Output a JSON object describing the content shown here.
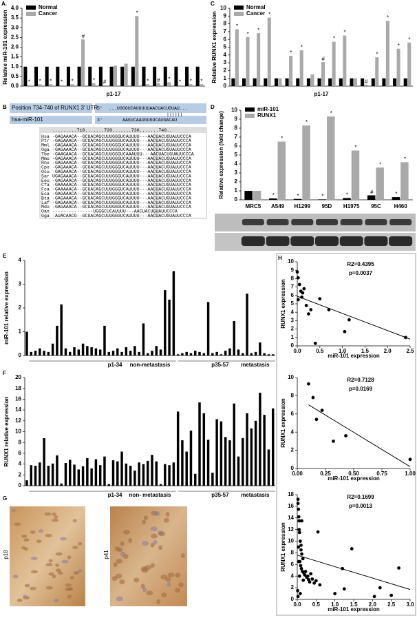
{
  "chart_data": [
    {
      "type": "bar",
      "panel": "A.",
      "ylabel": "Relative miR-101 expression",
      "xlabel": "p1-17",
      "categories": [
        null,
        null,
        null,
        null,
        null,
        null,
        null,
        null,
        null,
        null,
        null,
        null,
        null,
        null,
        null,
        null,
        null
      ],
      "series": [
        {
          "name": "Normal",
          "color": "#000000",
          "values": [
            1,
            1,
            1,
            1,
            1,
            1,
            1,
            1,
            1,
            1,
            1,
            1,
            1,
            1,
            1,
            1,
            1
          ]
        },
        {
          "name": "Cancer",
          "color": "#a9a9a9",
          "values": [
            0.05,
            0.1,
            0.1,
            0.05,
            0.1,
            2.4,
            0.15,
            0.05,
            1.05,
            1.15,
            3.6,
            0.1,
            0.15,
            0.2,
            0.05,
            0.1,
            0.1
          ],
          "annotations": [
            "*",
            "*",
            "*",
            "*",
            "*",
            "#",
            "*",
            "#",
            null,
            null,
            "*",
            "*",
            "#",
            "*",
            "*",
            "*",
            "*"
          ]
        }
      ],
      "ylim": [
        0,
        4
      ],
      "yticks": [
        {
          "value": 0,
          "label": "0.0"
        },
        0.5,
        {
          "value": 1,
          "label": "1.0"
        },
        1.5,
        {
          "value": 2,
          "label": "2.0"
        },
        2.5,
        {
          "value": 3,
          "label": "3.0"
        },
        3.5,
        {
          "value": 4,
          "label": "4.0"
        }
      ],
      "legend": "upper-left"
    },
    {
      "type": "bar",
      "panel": "C",
      "ylabel": "Relative RUNX1 expression",
      "xlabel": "p1-17",
      "categories": [
        null,
        null,
        null,
        null,
        null,
        null,
        null,
        null,
        null,
        null,
        null,
        null,
        null,
        null,
        null,
        null,
        null
      ],
      "series": [
        {
          "name": "Normal",
          "color": "#000000",
          "values": [
            1,
            1,
            1,
            1,
            1,
            1,
            1,
            1,
            1,
            1,
            1,
            1,
            1,
            1,
            1,
            1,
            1
          ]
        },
        {
          "name": "Cancer",
          "color": "#a9a9a9",
          "values": [
            7.3,
            6.3,
            6.8,
            8.8,
            1.0,
            3.9,
            4.6,
            1.5,
            3.1,
            5.7,
            6.5,
            1.0,
            0.2,
            3.7,
            8.4,
            4.8,
            5.6
          ],
          "annotations": [
            "*",
            "*",
            "*",
            "*",
            null,
            "*",
            "*",
            null,
            "#",
            "*",
            "*",
            null,
            "#",
            "*",
            "*",
            "*",
            "*"
          ]
        }
      ],
      "ylim": [
        0,
        10
      ],
      "yticks": [
        0,
        1,
        2,
        3,
        4,
        5,
        6,
        7,
        8,
        9,
        10
      ],
      "legend": "upper-left"
    },
    {
      "type": "bar",
      "panel": "D",
      "ylabel": "Relative expression (fold change)",
      "categories": [
        "MRC5",
        "A549",
        "H1299",
        "95D",
        "H1975",
        "95C",
        "H460"
      ],
      "series": [
        {
          "name": "miR-101",
          "color": "#000000",
          "values": [
            1.0,
            0.15,
            0.1,
            0.05,
            0.2,
            0.5,
            0.3
          ],
          "annotations": [
            null,
            "*",
            "*",
            "*",
            "*",
            "#",
            "*"
          ]
        },
        {
          "name": "RUNX1",
          "color": "#a9a9a9",
          "values": [
            1.0,
            6.5,
            8.3,
            9.3,
            5.5,
            3.6,
            4.2
          ],
          "annotations": [
            null,
            "*",
            "*",
            "*",
            "*",
            "*",
            "*"
          ]
        }
      ],
      "ylim": [
        0,
        10
      ],
      "yticks": [
        0,
        1,
        2,
        3,
        4,
        5,
        6,
        7,
        8,
        9,
        10
      ],
      "legend": "upper-left"
    },
    {
      "type": "bar",
      "panel": "E",
      "ylabel": "miR-101 relative expression",
      "color": "#000000",
      "group_labels": [
        "p1-34",
        "non-metastasis",
        "p35-57",
        "metastasis"
      ],
      "categories": [
        null,
        null,
        null,
        null,
        null,
        null,
        null,
        null,
        null,
        null,
        null,
        null,
        null,
        null,
        null,
        null,
        null,
        null,
        null,
        null,
        null,
        null,
        null,
        null,
        null,
        null,
        null,
        null,
        null,
        null,
        null,
        null,
        null,
        null,
        null,
        null,
        null,
        null,
        null,
        null,
        null,
        null,
        null,
        null,
        null,
        null,
        null,
        null,
        null,
        null,
        null,
        null,
        null,
        null,
        null,
        null,
        null,
        null
      ],
      "values": [
        1.0,
        0.15,
        0.2,
        0.3,
        0.2,
        0.15,
        0.5,
        1.25,
        2.15,
        0.3,
        0.15,
        0.35,
        0.25,
        0.5,
        0.4,
        0.35,
        0.3,
        0.25,
        1.25,
        0.15,
        0.2,
        0.3,
        0.15,
        0.35,
        0.2,
        0.4,
        0.15,
        1.35,
        0.1,
        0.2,
        0.4,
        0.25,
        2.75,
        2.35,
        3.55,
        0.05,
        0.1,
        0.15,
        0.1,
        0.2,
        0.15,
        0.1,
        2.25,
        0.1,
        0.15,
        0.05,
        0.2,
        0.3,
        1.45,
        0.25,
        0.1,
        2.6,
        0.1,
        0.15,
        0.55,
        0.1,
        0.05,
        0.05
      ],
      "ylim": [
        0,
        4
      ],
      "yticks": [
        0,
        1,
        2,
        3,
        4
      ]
    },
    {
      "type": "bar",
      "panel": "F",
      "ylabel": "RUNX1 relative expression",
      "color": "#000000",
      "group_labels": [
        "p1-34",
        "non- metastasis",
        "p35-57",
        "metastasis"
      ],
      "categories": [
        null,
        null,
        null,
        null,
        null,
        null,
        null,
        null,
        null,
        null,
        null,
        null,
        null,
        null,
        null,
        null,
        null,
        null,
        null,
        null,
        null,
        null,
        null,
        null,
        null,
        null,
        null,
        null,
        null,
        null,
        null,
        null,
        null,
        null,
        null,
        null,
        null,
        null,
        null,
        null,
        null,
        null,
        null,
        null,
        null,
        null,
        null,
        null,
        null,
        null,
        null,
        null,
        null,
        null,
        null,
        null,
        null,
        null
      ],
      "values": [
        1.0,
        3.8,
        3.7,
        4.3,
        8.8,
        3.7,
        4.1,
        5.6,
        0.4,
        4.2,
        4.8,
        3.9,
        3.0,
        3.6,
        5.1,
        3.2,
        4.9,
        3.8,
        5.4,
        0.3,
        4.7,
        4.5,
        6.3,
        4.1,
        3.7,
        2.8,
        4.3,
        4.0,
        4.6,
        5.7,
        4.5,
        0.3,
        4.0,
        3.8,
        4.3,
        13.7,
        8.4,
        6.3,
        10.2,
        2.2,
        15.4,
        13.4,
        8.5,
        2.4,
        12.3,
        11.9,
        9.0,
        8.4,
        15.2,
        5.4,
        8.8,
        13.4,
        10.6,
        12.0,
        17.2,
        13.1,
        6.7,
        14.3
      ],
      "ylim": [
        0,
        20
      ],
      "yticks": [
        0,
        2,
        4,
        6,
        8,
        10,
        12,
        14,
        16,
        18,
        20
      ]
    },
    {
      "type": "scatter",
      "panel": "H",
      "xlabel": "miR-101 expression",
      "ylabel": "RUNX1 expression",
      "annotations": [
        "R2=0.4395",
        "p=0.0037"
      ],
      "x": [
        0.0,
        0.02,
        0.05,
        0.08,
        0.1,
        0.12,
        0.15,
        0.2,
        0.25,
        0.3,
        0.4,
        0.5,
        0.7,
        1.05,
        1.15,
        2.4,
        0.02
      ],
      "y": [
        8.8,
        8.1,
        7.3,
        6.5,
        5.8,
        6.3,
        6.8,
        4.8,
        3.8,
        4.3,
        0.3,
        5.6,
        4.3,
        1.7,
        3.1,
        1.0,
        5.5
      ],
      "trendline": {
        "x": [
          0,
          2.5
        ],
        "y": [
          5.9,
          0.8
        ]
      },
      "xlim": [
        0,
        2.5
      ],
      "xticks": [
        {
          "value": 0,
          "label": "0.0"
        },
        0.5,
        {
          "value": 1,
          "label": "1.0"
        },
        1.5,
        {
          "value": 2,
          "label": "2.0"
        },
        2.5
      ],
      "ylim": [
        0,
        10
      ],
      "yticks": [
        0,
        1,
        2,
        3,
        4,
        5,
        6,
        7,
        8,
        9,
        10
      ]
    },
    {
      "type": "scatter",
      "xlabel": "miR-101 expression",
      "ylabel": "RUNX1 expression",
      "annotations": [
        "R2=0.7128",
        "p=0.0169"
      ],
      "x": [
        0.1,
        0.14,
        0.17,
        0.22,
        0.32,
        0.43,
        1.0
      ],
      "y": [
        9.3,
        7.8,
        5.4,
        6.4,
        3.0,
        3.6,
        1.0
      ],
      "trendline": {
        "x": [
          0.1,
          1.0
        ],
        "y": [
          7.0,
          0.2
        ]
      },
      "xlim": [
        0,
        1
      ],
      "xticks": [
        {
          "value": 0,
          "label": "0.00"
        },
        0.25,
        {
          "value": 0.5,
          "label": "0.50"
        },
        0.75,
        {
          "value": 1,
          "label": "1.00"
        }
      ],
      "ylim": [
        0,
        10
      ],
      "yticks": [
        0,
        2,
        4,
        6,
        8,
        10
      ]
    },
    {
      "type": "scatter",
      "xlabel": "miR-101 expression",
      "ylabel": "RUNX1 expression",
      "annotations": [
        "R2=0.1699",
        "p=0.0013"
      ],
      "x": [
        0.02,
        0.03,
        0.05,
        0.05,
        0.06,
        0.08,
        0.1,
        0.1,
        0.12,
        0.15,
        0.02,
        0.04,
        0.07,
        0.09,
        0.11,
        0.14,
        0.18,
        0.2,
        0.22,
        0.25,
        0.28,
        0.3,
        0.33,
        0.36,
        0.4,
        0.45,
        0.5,
        0.55,
        0.6,
        0.12,
        0.08,
        0.03,
        0.04,
        0.06,
        0.16,
        1.0,
        1.2,
        1.25,
        1.45,
        2.05,
        2.2,
        2.5,
        2.7,
        0.01,
        0.02
      ],
      "y": [
        16.5,
        15.5,
        13.5,
        12.0,
        11.5,
        10.0,
        9.3,
        8.5,
        7.8,
        7.0,
        17.2,
        14.2,
        6.5,
        5.8,
        5.3,
        4.8,
        4.5,
        4.2,
        4.8,
        3.8,
        4.0,
        3.4,
        3.0,
        4.4,
        3.5,
        2.8,
        3.2,
        11.6,
        2.5,
        13.5,
        1.0,
        9.0,
        6.5,
        4.0,
        3.3,
        1.0,
        5.3,
        1.8,
        8.7,
        0.5,
        2.0,
        0.7,
        5.4,
        1.5,
        0.5
      ],
      "trendline": {
        "x": [
          0,
          3
        ],
        "y": [
          7.6,
          1.7
        ]
      },
      "xlim": [
        0,
        3
      ],
      "xticks": [
        {
          "value": 0,
          "label": "0.0"
        },
        0.5,
        {
          "value": 1,
          "label": "1.0"
        },
        1.5,
        {
          "value": 2,
          "label": "2.0"
        },
        2.5,
        {
          "value": 3,
          "label": "3.0"
        }
      ],
      "ylim": [
        0,
        18
      ],
      "yticks": [
        0,
        2,
        4,
        6,
        8,
        10,
        12,
        14,
        16,
        18
      ]
    }
  ],
  "alignment": {
    "panel": "B",
    "target_label": "Position 734-740 of RUNX1 3' UTR",
    "target_end": "5'",
    "target_seq": "...UGGGUCAUUUUUAACUACUGUAU...",
    "mirna_label": "hsa-miR-101",
    "mirna_end": "3'",
    "mirna_seq": "AAGUCAAUGUGUCAUGACAU",
    "pairing": "||||||",
    "ruler": ".........710.......720.......730.......740..",
    "rows": [
      {
        "species": "Hsa",
        "seq": "-GAGAAACA--GCUACAGCUUUGGGUCAUUUU---AACUACUGUAUUCCCA",
        "color": "#1f1f1f"
      },
      {
        "species": "Ptr",
        "seq": "-GAGAAACA--GCUACAGCUUUGGGUCAUUUU---AACUACUGUAUUCCCA",
        "color": "#1c3f94"
      },
      {
        "species": "Mml",
        "seq": "-GAGAAACA--GCUACAGCUUUGGGUCAUUUU---AACUACUGUAUUCCCA",
        "color": "#1c3f94"
      },
      {
        "species": "Oga",
        "seq": "-GAGAAACA--GCUACAGCUUUGGGUCAUUUU---AACUACUGUAUUCCCA",
        "color": "#1c3f94"
      },
      {
        "species": "Tbe",
        "seq": "-GAAGAACA--GCUACAGCUUUGGGUCAAAUUU---AACUACUGUAUUCCCA",
        "color": "#8b1c5c"
      },
      {
        "species": "Mmu",
        "seq": "-GAGAAACA--GCUACAGCUUUGGGUCAUUUU---AACUACUGUAUUCCCA",
        "color": "#1c3f94"
      },
      {
        "species": "Rno",
        "seq": "-GAGAAACA--GCUACAGCUUUGGGUCAUUUU---AACUACUGUAUUCCCA",
        "color": "#1c3f94"
      },
      {
        "species": "Cpo",
        "seq": "-GAGAAACA--GCUACAGCUUUGGGUCAUUUU---AACUACUGUAUUCCCA",
        "color": "#8b8b8b"
      },
      {
        "species": "Ocu",
        "seq": "-GAGAAACA--GCUACAGCUUUGGGUCAUUUU---AACUACUGUAUUCCCA",
        "color": "#1c3f94"
      },
      {
        "species": "Sar",
        "seq": "UGAGAAACA--GCUACAGCUUUGGGUCAUUUU---AACUACUGUAUUCCCA",
        "color": "#8b1c5c"
      },
      {
        "species": "Eeu",
        "seq": "-GAGAAACA--GCUACAGCUUUGGGUCAUUUU---AACUACUGUAUUCCCA",
        "color": "#1c3f94"
      },
      {
        "species": "Cfa",
        "seq": "-GAAAAACA--GCUACAGCUUUGGGUCAUUUU---AACUACUGUAUUCCCA",
        "color": "#1c3f94"
      },
      {
        "species": "Fca",
        "seq": "-GAAAAACA--GCUACAGCUUUGGGUCAUUUU---AACUACUGUAUUCCCA",
        "color": "#8b8b8b"
      },
      {
        "species": "Eca",
        "seq": "-GAGAAACA--GCUACAGCUUUGGGUCAUUUU---AACUACUGUAUUCCCA",
        "color": "#8b1c5c"
      },
      {
        "species": "Bta",
        "seq": "-GAGAAACA--GCUACAGCUUUGGGUCAUUUU---AACUACUGUAUUCCCA",
        "color": "#8b1c5c"
      },
      {
        "species": "Laf",
        "seq": "-GAGAAACA--GCUACAGCUUUGGGUCAUUUU---AACUACUGUAUUCCCA",
        "color": "#1c3f94"
      },
      {
        "species": "Mdo",
        "seq": "-GAGAAACA--GCUACAGCUUUGGGUCAUUUU---AACUACUGUAUUCCCA",
        "color": "#1c3f94"
      },
      {
        "species": "Oan",
        "seq": "---------------UGGGCUCAUUUU---AACUACUGUAUUCCCA",
        "color": "#8b1c5c"
      },
      {
        "species": "Gga",
        "seq": "-AUACAACG--GCUACAGCUUUGGGUCAUUUU---AACUACUGUAUUCCCA",
        "color": "#1c3f94"
      }
    ]
  },
  "ihc": {
    "panel": "G",
    "images": [
      "p18",
      "p41"
    ]
  }
}
